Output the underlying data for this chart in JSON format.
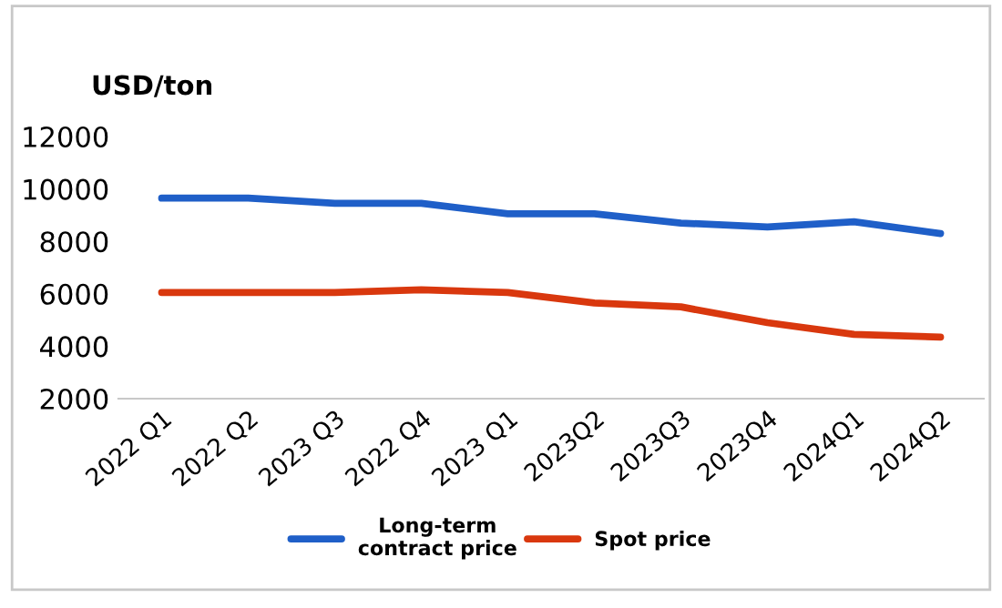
{
  "chart_data": {
    "type": "line",
    "ylabel": "USD/ton",
    "categories": [
      "2022 Q1",
      "2022 Q2",
      "2023 Q3",
      "2022 Q4",
      "2023 Q1",
      "2023Q2",
      "2023Q3",
      "2023Q4",
      "2024Q1",
      "2024Q2"
    ],
    "series": [
      {
        "name": "Long-term\ncontract price",
        "color": "#1f5fc8",
        "values": [
          9650,
          9650,
          9450,
          9450,
          9050,
          9050,
          8700,
          8550,
          8750,
          8300
        ]
      },
      {
        "name": "Spot price",
        "color": "#d9380e",
        "values": [
          6050,
          6050,
          6050,
          6150,
          6050,
          5650,
          5500,
          4900,
          4450,
          4350
        ]
      }
    ],
    "ylim": [
      2000,
      12000
    ],
    "yticks": [
      2000,
      4000,
      6000,
      8000,
      10000,
      12000
    ],
    "grid": false,
    "legend": "bottom",
    "marker": "none",
    "line_style": "solid"
  }
}
